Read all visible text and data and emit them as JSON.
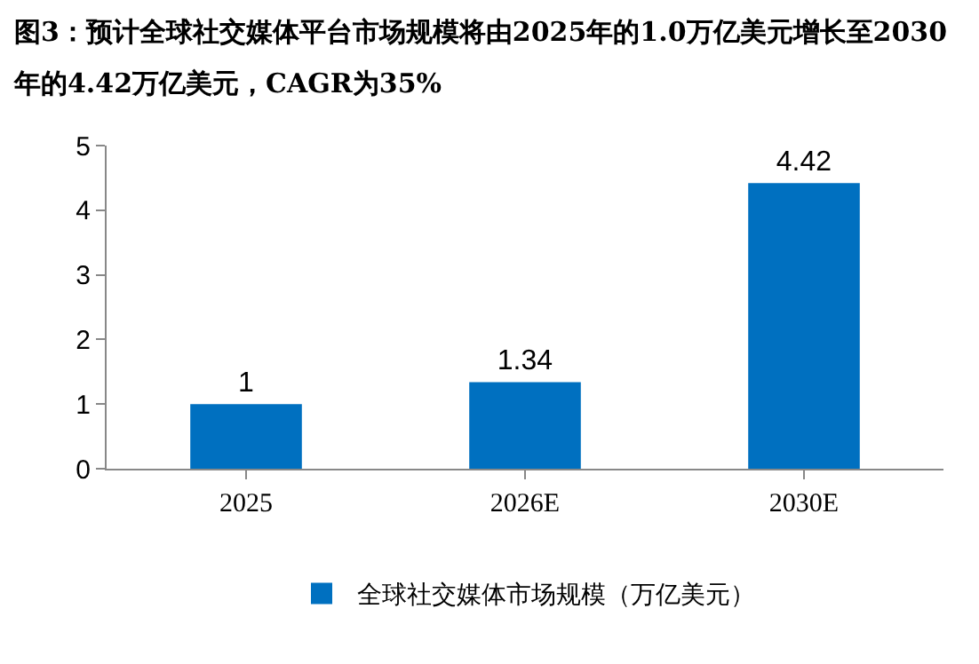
{
  "chart_data": {
    "type": "bar",
    "title": "图3：预计全球社交媒体平台市场规模将由2025年的1.0万亿美元增长至2030年的4.42万亿美元，CAGR为35%",
    "categories": [
      "2025",
      "2026E",
      "2030E"
    ],
    "series": [
      {
        "name": "全球社交媒体市场规模（万亿美元）",
        "color": "#0070c0",
        "values": [
          1,
          1.34,
          4.42
        ]
      }
    ],
    "ylim": [
      0,
      5
    ],
    "yticks": [
      0,
      1,
      2,
      3,
      4,
      5
    ],
    "grid": false,
    "legend": "bottom",
    "data_labels": true
  }
}
